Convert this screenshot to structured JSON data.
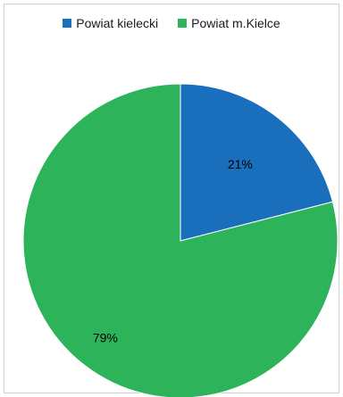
{
  "chart_data": {
    "type": "pie",
    "title": "",
    "legend_position": "top",
    "series": [
      {
        "name": "Powiat kielecki",
        "value": 21,
        "label": "21%",
        "color": "#1a6fbd"
      },
      {
        "name": "Powiat m.Kielce",
        "value": 79,
        "label": "79%",
        "color": "#2db35a"
      }
    ]
  }
}
